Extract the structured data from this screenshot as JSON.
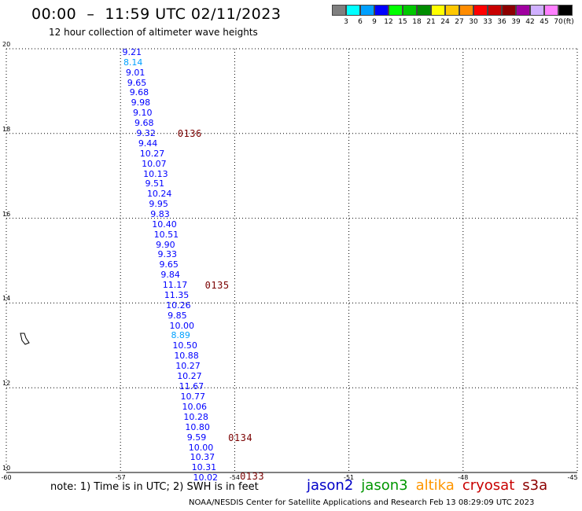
{
  "header": {
    "title": "00:00  –  11:59 UTC 02/11/2023",
    "subtitle": "12 hour collection of altimeter wave heights"
  },
  "legend": {
    "units": "(ft)",
    "items": [
      {
        "color": "#7f7f7f",
        "label": "3"
      },
      {
        "color": "#00ffff",
        "label": "6"
      },
      {
        "color": "#00a0ff",
        "label": "9"
      },
      {
        "color": "#0000ff",
        "label": "12"
      },
      {
        "color": "#00ff00",
        "label": "15"
      },
      {
        "color": "#00c800",
        "label": "18"
      },
      {
        "color": "#008c00",
        "label": "21"
      },
      {
        "color": "#ffff00",
        "label": "24"
      },
      {
        "color": "#ffc800",
        "label": "27"
      },
      {
        "color": "#ff8c00",
        "label": "30"
      },
      {
        "color": "#ff0000",
        "label": "33"
      },
      {
        "color": "#c80000",
        "label": "36"
      },
      {
        "color": "#8c0000",
        "label": "39"
      },
      {
        "color": "#a000a0",
        "label": "42"
      },
      {
        "color": "#d0b0ff",
        "label": "45"
      },
      {
        "color": "#ff80ff",
        "label": "70"
      },
      {
        "color": "#000000",
        "label": ""
      }
    ]
  },
  "map": {
    "lon_range": [
      -60,
      -45
    ],
    "lat_range": [
      10,
      20
    ],
    "x_ticks": [
      {
        "value": -60,
        "label": "-60"
      },
      {
        "value": -57,
        "label": "-57"
      },
      {
        "value": -54,
        "label": "-54"
      },
      {
        "value": -51,
        "label": "-51"
      },
      {
        "value": -48,
        "label": "-48"
      },
      {
        "value": -45,
        "label": "-45"
      }
    ],
    "y_ticks": [
      {
        "value": 20,
        "label": "20"
      },
      {
        "value": 18,
        "label": "18"
      },
      {
        "value": 16,
        "label": "16"
      },
      {
        "value": 14,
        "label": "14"
      },
      {
        "value": 12,
        "label": "12"
      },
      {
        "value": 10,
        "label": "10"
      }
    ]
  },
  "track": {
    "color_low": "#00a0ff",
    "color_mid": "#0000ff",
    "points": [
      {
        "label": "9.21",
        "lon": -56.87,
        "lat": 19.91,
        "band": "mid"
      },
      {
        "label": "8.14",
        "lon": -56.84,
        "lat": 19.67,
        "band": "low"
      },
      {
        "label": "9.01",
        "lon": -56.78,
        "lat": 19.43,
        "band": "mid"
      },
      {
        "label": "9.65",
        "lon": -56.74,
        "lat": 19.19,
        "band": "mid"
      },
      {
        "label": "9.68",
        "lon": -56.68,
        "lat": 18.96,
        "band": "mid"
      },
      {
        "label": "9.98",
        "lon": -56.64,
        "lat": 18.72,
        "band": "mid"
      },
      {
        "label": "9.10",
        "lon": -56.59,
        "lat": 18.48,
        "band": "mid"
      },
      {
        "label": "9.68",
        "lon": -56.55,
        "lat": 18.24,
        "band": "mid"
      },
      {
        "label": "9.32",
        "lon": -56.5,
        "lat": 18.0,
        "band": "mid"
      },
      {
        "label": "9.44",
        "lon": -56.45,
        "lat": 17.76,
        "band": "mid"
      },
      {
        "label": "10.27",
        "lon": -56.41,
        "lat": 17.52,
        "band": "mid"
      },
      {
        "label": "10.07",
        "lon": -56.36,
        "lat": 17.28,
        "band": "mid"
      },
      {
        "label": "10.13",
        "lon": -56.32,
        "lat": 17.04,
        "band": "mid"
      },
      {
        "label": "9.51",
        "lon": -56.27,
        "lat": 16.8,
        "band": "mid"
      },
      {
        "label": "10.24",
        "lon": -56.22,
        "lat": 16.56,
        "band": "mid"
      },
      {
        "label": "9.95",
        "lon": -56.17,
        "lat": 16.32,
        "band": "mid"
      },
      {
        "label": "9.83",
        "lon": -56.13,
        "lat": 16.09,
        "band": "mid"
      },
      {
        "label": "10.40",
        "lon": -56.09,
        "lat": 15.85,
        "band": "mid"
      },
      {
        "label": "10.51",
        "lon": -56.04,
        "lat": 15.61,
        "band": "mid"
      },
      {
        "label": "9.90",
        "lon": -55.99,
        "lat": 15.37,
        "band": "mid"
      },
      {
        "label": "9.33",
        "lon": -55.94,
        "lat": 15.13,
        "band": "mid"
      },
      {
        "label": "9.65",
        "lon": -55.9,
        "lat": 14.89,
        "band": "mid"
      },
      {
        "label": "9.84",
        "lon": -55.86,
        "lat": 14.65,
        "band": "mid"
      },
      {
        "label": "11.17",
        "lon": -55.81,
        "lat": 14.41,
        "band": "mid"
      },
      {
        "label": "11.35",
        "lon": -55.77,
        "lat": 14.17,
        "band": "mid"
      },
      {
        "label": "10.26",
        "lon": -55.72,
        "lat": 13.93,
        "band": "mid"
      },
      {
        "label": "9.85",
        "lon": -55.68,
        "lat": 13.69,
        "band": "mid"
      },
      {
        "label": "10.00",
        "lon": -55.63,
        "lat": 13.45,
        "band": "mid"
      },
      {
        "label": "8.89",
        "lon": -55.59,
        "lat": 13.22,
        "band": "low"
      },
      {
        "label": "10.50",
        "lon": -55.55,
        "lat": 12.98,
        "band": "mid"
      },
      {
        "label": "10.88",
        "lon": -55.51,
        "lat": 12.74,
        "band": "mid"
      },
      {
        "label": "10.27",
        "lon": -55.47,
        "lat": 12.5,
        "band": "mid"
      },
      {
        "label": "10.27",
        "lon": -55.43,
        "lat": 12.26,
        "band": "mid"
      },
      {
        "label": "11.67",
        "lon": -55.38,
        "lat": 12.02,
        "band": "mid"
      },
      {
        "label": "10.77",
        "lon": -55.34,
        "lat": 11.78,
        "band": "mid"
      },
      {
        "label": "10.06",
        "lon": -55.3,
        "lat": 11.54,
        "band": "mid"
      },
      {
        "label": "10.28",
        "lon": -55.26,
        "lat": 11.3,
        "band": "mid"
      },
      {
        "label": "10.80",
        "lon": -55.22,
        "lat": 11.06,
        "band": "mid"
      },
      {
        "label": "9.59",
        "lon": -55.17,
        "lat": 10.82,
        "band": "mid"
      },
      {
        "label": "10.00",
        "lon": -55.13,
        "lat": 10.58,
        "band": "mid"
      },
      {
        "label": "10.37",
        "lon": -55.09,
        "lat": 10.35,
        "band": "mid"
      },
      {
        "label": "10.31",
        "lon": -55.05,
        "lat": 10.11,
        "band": "mid"
      },
      {
        "label": "10.02",
        "lon": -55.01,
        "lat": 9.87,
        "band": "mid"
      }
    ],
    "passes": [
      {
        "label": "0136",
        "lon": -55.5,
        "lat": 18.0
      },
      {
        "label": "0135",
        "lon": -54.78,
        "lat": 14.41
      },
      {
        "label": "0134",
        "lon": -54.17,
        "lat": 10.82
      },
      {
        "label": "0133",
        "lon": -53.86,
        "lat": 9.91
      }
    ]
  },
  "footer": {
    "note": "note:  1) Time is in UTC;  2) SWH is in feet",
    "satellites": [
      {
        "name": "jason2",
        "color": "#0000c8"
      },
      {
        "name": "jason3",
        "color": "#009600"
      },
      {
        "name": "altika",
        "color": "#ff9600"
      },
      {
        "name": "cryosat",
        "color": "#c80000"
      },
      {
        "name": "s3a",
        "color": "#8c0000"
      }
    ],
    "credit": "NOAA/NESDIS Center for Satellite Applications and Research    Feb 13 08:29:09 UTC 2023"
  }
}
